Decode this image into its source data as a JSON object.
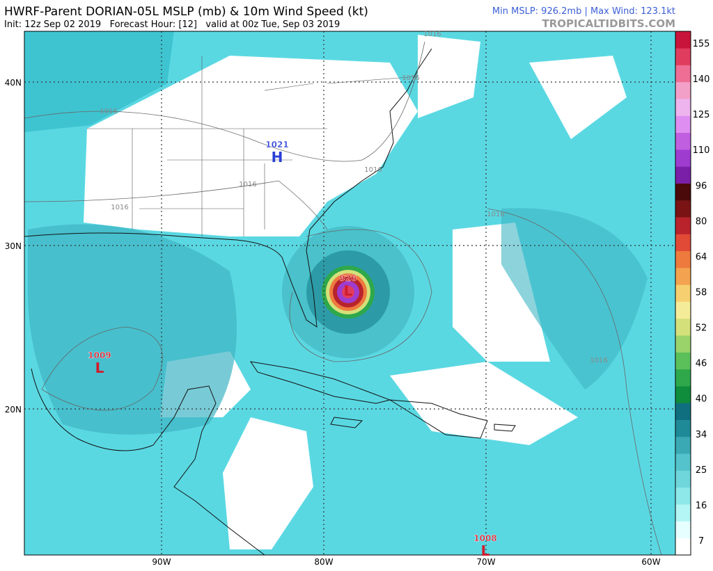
{
  "header": {
    "title": "HWRF-Parent DORIAN-05L MSLP (mb) & 10m Wind Speed (kt)",
    "subtitle": "Init: 12z Sep 02 2019   Forecast Hour: [12]   valid at 00z Tue, Sep 03 2019",
    "stats": "Min MSLP: 926.2mb | Max Wind: 123.1kt",
    "site": "TROPICALTIDBITS.COM"
  },
  "map": {
    "lat_labels": [
      "40N",
      "30N",
      "20N"
    ],
    "lon_labels": [
      "90W",
      "80W",
      "70W",
      "60W"
    ],
    "centers": [
      {
        "pressure": "1021",
        "letter": "H"
      },
      {
        "pressure": "1009",
        "letter": "L"
      },
      {
        "pressure": "926",
        "letter": "L"
      },
      {
        "pressure": "1008",
        "letter": "L"
      }
    ],
    "isobar_labels": [
      "1016",
      "1016",
      "1016",
      "1016",
      "1016",
      "1016",
      "1016",
      "1016"
    ]
  },
  "colorbar": {
    "labels": [
      155,
      140,
      125,
      110,
      96,
      80,
      64,
      58,
      52,
      46,
      40,
      34,
      25,
      16,
      7
    ],
    "colors": [
      "#ffffff",
      "#e6ffff",
      "#b4f5f5",
      "#8ee8ea",
      "#6fd6db",
      "#55c3cb",
      "#3aa9b4",
      "#1f8a97",
      "#0f6f7f",
      "#0f8c3c",
      "#2ea84a",
      "#5cc05a",
      "#9ad36a",
      "#d4e07a",
      "#f5ec9a",
      "#f6d070",
      "#f3a34f",
      "#ee7a3e",
      "#e14a37",
      "#b8232c",
      "#7a1414",
      "#4a0a0a",
      "#7a1fa8",
      "#9e3cd0",
      "#c060e0",
      "#de8ef0",
      "#eeb4ee",
      "#f3a0c8",
      "#ee6e96",
      "#e03d5e",
      "#c8143a"
    ]
  }
}
